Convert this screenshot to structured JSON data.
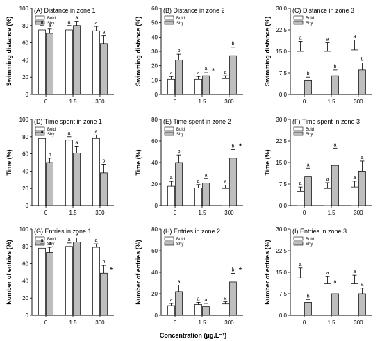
{
  "colors": {
    "bold": "#ffffff",
    "shy": "#bebebe",
    "stroke": "#000000"
  },
  "x_axis_label": "Concentration (μg.L⁻¹)",
  "chart_data": [
    {
      "type": "bar",
      "title": "(A) Distance in zone 1",
      "ylabel": "Swimming distance (%)",
      "categories": [
        "0",
        "1.5",
        "300"
      ],
      "ylim": [
        0,
        100
      ],
      "yticks": [
        0,
        20,
        40,
        60,
        80,
        100
      ],
      "legend": [
        "Bold",
        "Shy"
      ],
      "series": [
        {
          "name": "Bold",
          "values": [
            75,
            75,
            74
          ],
          "errors": [
            5,
            5,
            5
          ],
          "letters": [
            "a",
            "a",
            "a"
          ]
        },
        {
          "name": "Shy",
          "values": [
            71,
            80,
            59
          ],
          "errors": [
            5,
            5,
            9
          ],
          "letters": [
            "a",
            "a",
            "a"
          ]
        }
      ],
      "stars": []
    },
    {
      "type": "bar",
      "title": "(B) Distance in zone 2",
      "ylabel": "Swimming distance (%)",
      "categories": [
        "0",
        "1.5",
        "300"
      ],
      "ylim": [
        0,
        60
      ],
      "yticks": [
        0,
        10,
        20,
        30,
        40,
        50,
        60
      ],
      "legend": [
        "Bold",
        "Shy"
      ],
      "series": [
        {
          "name": "Bold",
          "values": [
            10.5,
            10.5,
            11
          ],
          "errors": [
            2,
            2,
            2
          ],
          "letters": [
            "a",
            "a",
            "a"
          ]
        },
        {
          "name": "Shy",
          "values": [
            24,
            13,
            27
          ],
          "errors": [
            4,
            2.5,
            6
          ],
          "letters": [
            "b",
            "a",
            "b"
          ]
        }
      ],
      "stars": [
        {
          "category": 1,
          "value": 18
        }
      ]
    },
    {
      "type": "bar",
      "title": "(C) Distance in zone 3",
      "ylabel": "Swimming distance (%)",
      "categories": [
        "0",
        "1.5",
        "300"
      ],
      "ylim": [
        0,
        30
      ],
      "yticks": [
        0,
        7.5,
        15,
        22.5,
        30
      ],
      "tick_labels": [
        "0.0",
        "7.5",
        "15.0",
        "22.5",
        "30.0"
      ],
      "legend": [
        "Bold",
        "Shy"
      ],
      "series": [
        {
          "name": "Bold",
          "values": [
            15,
            15,
            15.5
          ],
          "errors": [
            3.5,
            3,
            3.5
          ],
          "letters": [
            "a",
            "a",
            "a"
          ]
        },
        {
          "name": "Shy",
          "values": [
            5,
            6.5,
            8.5
          ],
          "errors": [
            1,
            2,
            2.5
          ],
          "letters": [
            "b",
            "b",
            "b"
          ]
        }
      ],
      "stars": []
    },
    {
      "type": "bar",
      "title": "(D) Time spent in zone 1",
      "ylabel": "Time (%)",
      "categories": [
        "0",
        "1.5",
        "300"
      ],
      "ylim": [
        0,
        100
      ],
      "yticks": [
        0,
        20,
        40,
        60,
        80,
        100
      ],
      "legend": [
        "Bold",
        "Shy"
      ],
      "series": [
        {
          "name": "Bold",
          "values": [
            78,
            76,
            78
          ],
          "errors": [
            4,
            4,
            4
          ],
          "letters": [
            "a",
            "a",
            "a"
          ]
        },
        {
          "name": "Shy",
          "values": [
            50,
            61,
            38
          ],
          "errors": [
            5,
            8,
            10
          ],
          "letters": [
            "b",
            "a",
            "b"
          ]
        }
      ],
      "stars": []
    },
    {
      "type": "bar",
      "title": "(E) Time spent in zone 2",
      "ylabel": "Time (%)",
      "categories": [
        "0",
        "1.5",
        "300"
      ],
      "ylim": [
        0,
        80
      ],
      "yticks": [
        0,
        20,
        40,
        60,
        80
      ],
      "legend": [
        "Bold",
        "Shy"
      ],
      "series": [
        {
          "name": "Bold",
          "values": [
            18,
            16.5,
            16
          ],
          "errors": [
            4.5,
            3,
            3
          ],
          "letters": [
            "a",
            "a",
            "a"
          ]
        },
        {
          "name": "Shy",
          "values": [
            40,
            21,
            44
          ],
          "errors": [
            7,
            4,
            8
          ],
          "letters": [
            "b",
            "a",
            "b"
          ]
        }
      ],
      "stars": [
        {
          "category": 2,
          "value": 57
        }
      ]
    },
    {
      "type": "bar",
      "title": "(F) Time spent in zone 3",
      "ylabel": "Time (%)",
      "categories": [
        "0",
        "1.5",
        "300"
      ],
      "ylim": [
        0,
        30
      ],
      "yticks": [
        0,
        7.5,
        15,
        22.5,
        30
      ],
      "tick_labels": [
        "0.0",
        "7.5",
        "15.0",
        "22.5",
        "30.0"
      ],
      "legend": [
        "Bold",
        "Shy"
      ],
      "series": [
        {
          "name": "Bold",
          "values": [
            5,
            6,
            6.5
          ],
          "errors": [
            1.5,
            2,
            2
          ],
          "letters": [
            "a",
            "a",
            "a"
          ]
        },
        {
          "name": "Shy",
          "values": [
            10,
            14,
            12
          ],
          "errors": [
            3,
            6,
            3.5
          ],
          "letters": [
            "a",
            "a",
            "a"
          ]
        }
      ],
      "stars": []
    },
    {
      "type": "bar",
      "title": "(G) Entries in zone 1",
      "ylabel": "Number of entries (%)",
      "categories": [
        "0",
        "1.5",
        "300"
      ],
      "ylim": [
        0,
        100
      ],
      "yticks": [
        0,
        20,
        40,
        60,
        80,
        100
      ],
      "legend": [
        "Bold",
        "Shy"
      ],
      "series": [
        {
          "name": "Bold",
          "values": [
            78,
            80,
            79
          ],
          "errors": [
            5,
            4,
            4
          ],
          "letters": [
            "a",
            "a",
            "a"
          ]
        },
        {
          "name": "Shy",
          "values": [
            73,
            85,
            49
          ],
          "errors": [
            6,
            5,
            9
          ],
          "letters": [
            "a",
            "a",
            "b"
          ]
        }
      ],
      "stars": [
        {
          "category": 2,
          "value": 55
        }
      ]
    },
    {
      "type": "bar",
      "title": "(H) Entries in zone 2",
      "ylabel": "Number of entries (%)",
      "categories": [
        "0",
        "1.5",
        "300"
      ],
      "ylim": [
        0,
        80
      ],
      "yticks": [
        0,
        20,
        40,
        60,
        80
      ],
      "legend": [
        "Bold",
        "Shy"
      ],
      "series": [
        {
          "name": "Bold",
          "values": [
            9,
            10,
            10.5
          ],
          "errors": [
            2,
            2,
            2
          ],
          "letters": [
            "a",
            "a",
            "a"
          ]
        },
        {
          "name": "Shy",
          "values": [
            22,
            8,
            31
          ],
          "errors": [
            6,
            3,
            8
          ],
          "letters": [
            "a",
            "a",
            "b"
          ]
        }
      ],
      "stars": [
        {
          "category": 2,
          "value": 44
        }
      ]
    },
    {
      "type": "bar",
      "title": "(I) Entries in zone 3",
      "ylabel": "Number of entries (%)",
      "categories": [
        "0",
        "1.5",
        "300"
      ],
      "ylim": [
        0,
        30
      ],
      "yticks": [
        0,
        7.5,
        15,
        22.5,
        30
      ],
      "tick_labels": [
        "0.0",
        "7.5",
        "15.0",
        "22.5",
        "30.0"
      ],
      "legend": [
        "Bold",
        "Shy"
      ],
      "series": [
        {
          "name": "Bold",
          "values": [
            13,
            11,
            11
          ],
          "errors": [
            3.5,
            2.5,
            3
          ],
          "letters": [
            "a",
            "a",
            "a"
          ]
        },
        {
          "name": "Shy",
          "values": [
            4.5,
            7.5,
            7.5
          ],
          "errors": [
            1,
            3,
            2
          ],
          "letters": [
            "b",
            "a",
            "a"
          ]
        }
      ],
      "stars": []
    }
  ]
}
